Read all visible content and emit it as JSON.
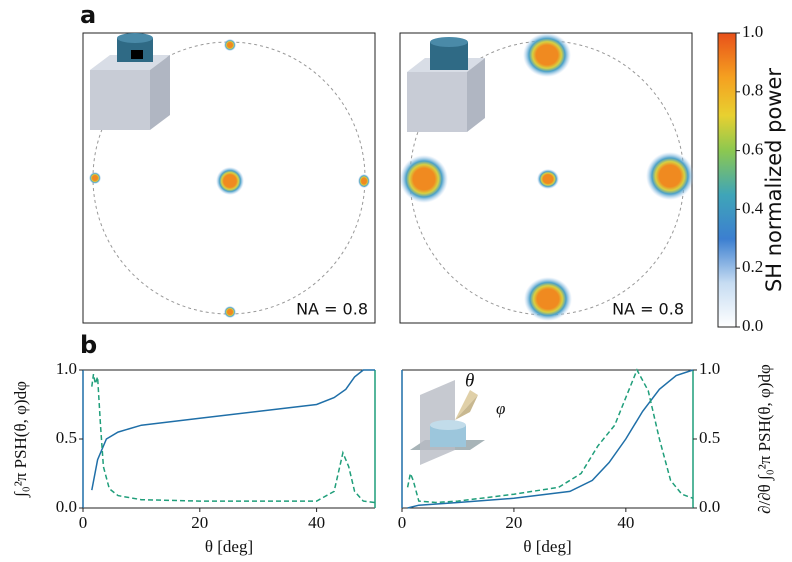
{
  "panel_labels": [
    "a",
    "b"
  ],
  "images": [
    {
      "annotation": "NA = 0.8"
    },
    {
      "annotation": "NA = 0.8"
    }
  ],
  "inset_labels": [
    "θ",
    "φ"
  ],
  "chart_data": [
    {
      "type": "colorbar",
      "label": "SH normalized power",
      "lim": [
        0,
        1
      ],
      "ticks": [
        {
          "value": 0,
          "label": "0.0"
        },
        {
          "value": 0.2,
          "label": "0.2"
        },
        {
          "value": 0.4,
          "label": "0.4"
        },
        {
          "value": 0.6,
          "label": "0.6"
        },
        {
          "value": 0.8,
          "label": "0.8"
        },
        {
          "value": 1,
          "label": "1.0"
        }
      ]
    },
    {
      "type": "line",
      "xlabel": "θ [deg]",
      "ylabel": "∫₀²π PSH(θ, φ)dφ",
      "xlim": [
        0,
        50
      ],
      "xticks": [
        0,
        20,
        40
      ],
      "ylim": [
        0,
        1
      ],
      "yticks": [
        {
          "value": 0,
          "label": "0.0"
        },
        {
          "value": 0.5,
          "label": "0.5"
        },
        {
          "value": 1,
          "label": "1.0"
        }
      ],
      "series": [
        {
          "color": "#1f6fa8",
          "dash": false,
          "x": [
            1.5,
            2.5,
            4,
            6,
            10,
            20,
            30,
            40,
            43,
            45,
            46.5,
            48,
            50
          ],
          "values": [
            0.13,
            0.35,
            0.5,
            0.55,
            0.6,
            0.65,
            0.7,
            0.75,
            0.8,
            0.86,
            0.95,
            1.0,
            1.0
          ]
        },
        {
          "color": "#1f9e7a",
          "dash": true,
          "x": [
            1.5,
            1.8,
            2.1,
            2.5,
            3,
            3.5,
            4.5,
            6,
            10,
            20,
            30,
            40,
            43,
            44.5,
            45.5,
            46.5,
            48,
            50
          ],
          "values": [
            0.88,
            0.97,
            0.9,
            0.95,
            0.6,
            0.3,
            0.14,
            0.09,
            0.06,
            0.05,
            0.05,
            0.05,
            0.12,
            0.4,
            0.3,
            0.12,
            0.05,
            0.04
          ]
        }
      ]
    },
    {
      "type": "line",
      "xlabel": "θ [deg]",
      "y2label": "∂/∂θ ∫₀²π PSH(θ, φ)dφ",
      "xlim": [
        0,
        52
      ],
      "xticks": [
        0,
        20,
        40
      ],
      "y2lim": [
        0,
        1
      ],
      "y2ticks": [
        {
          "value": 0,
          "label": "0.0"
        },
        {
          "value": 0.5,
          "label": "0.5"
        },
        {
          "value": 1,
          "label": "1.0"
        }
      ],
      "series": [
        {
          "color": "#1f6fa8",
          "dash": false,
          "axis": "y2",
          "x": [
            1,
            3,
            10,
            20,
            30,
            34,
            37,
            40,
            43,
            46,
            49,
            52
          ],
          "values": [
            0.0,
            0.02,
            0.04,
            0.07,
            0.12,
            0.2,
            0.33,
            0.5,
            0.7,
            0.86,
            0.96,
            1.0
          ]
        },
        {
          "color": "#1f9e7a",
          "dash": true,
          "axis": "y2",
          "x": [
            1,
            1.5,
            2,
            3,
            6,
            10,
            20,
            28,
            32,
            35,
            38,
            40,
            42,
            44,
            46,
            48,
            50,
            52
          ],
          "values": [
            0.15,
            0.25,
            0.2,
            0.05,
            0.04,
            0.05,
            0.1,
            0.15,
            0.25,
            0.45,
            0.6,
            0.8,
            1.0,
            0.85,
            0.5,
            0.2,
            0.1,
            0.07
          ]
        }
      ]
    }
  ]
}
